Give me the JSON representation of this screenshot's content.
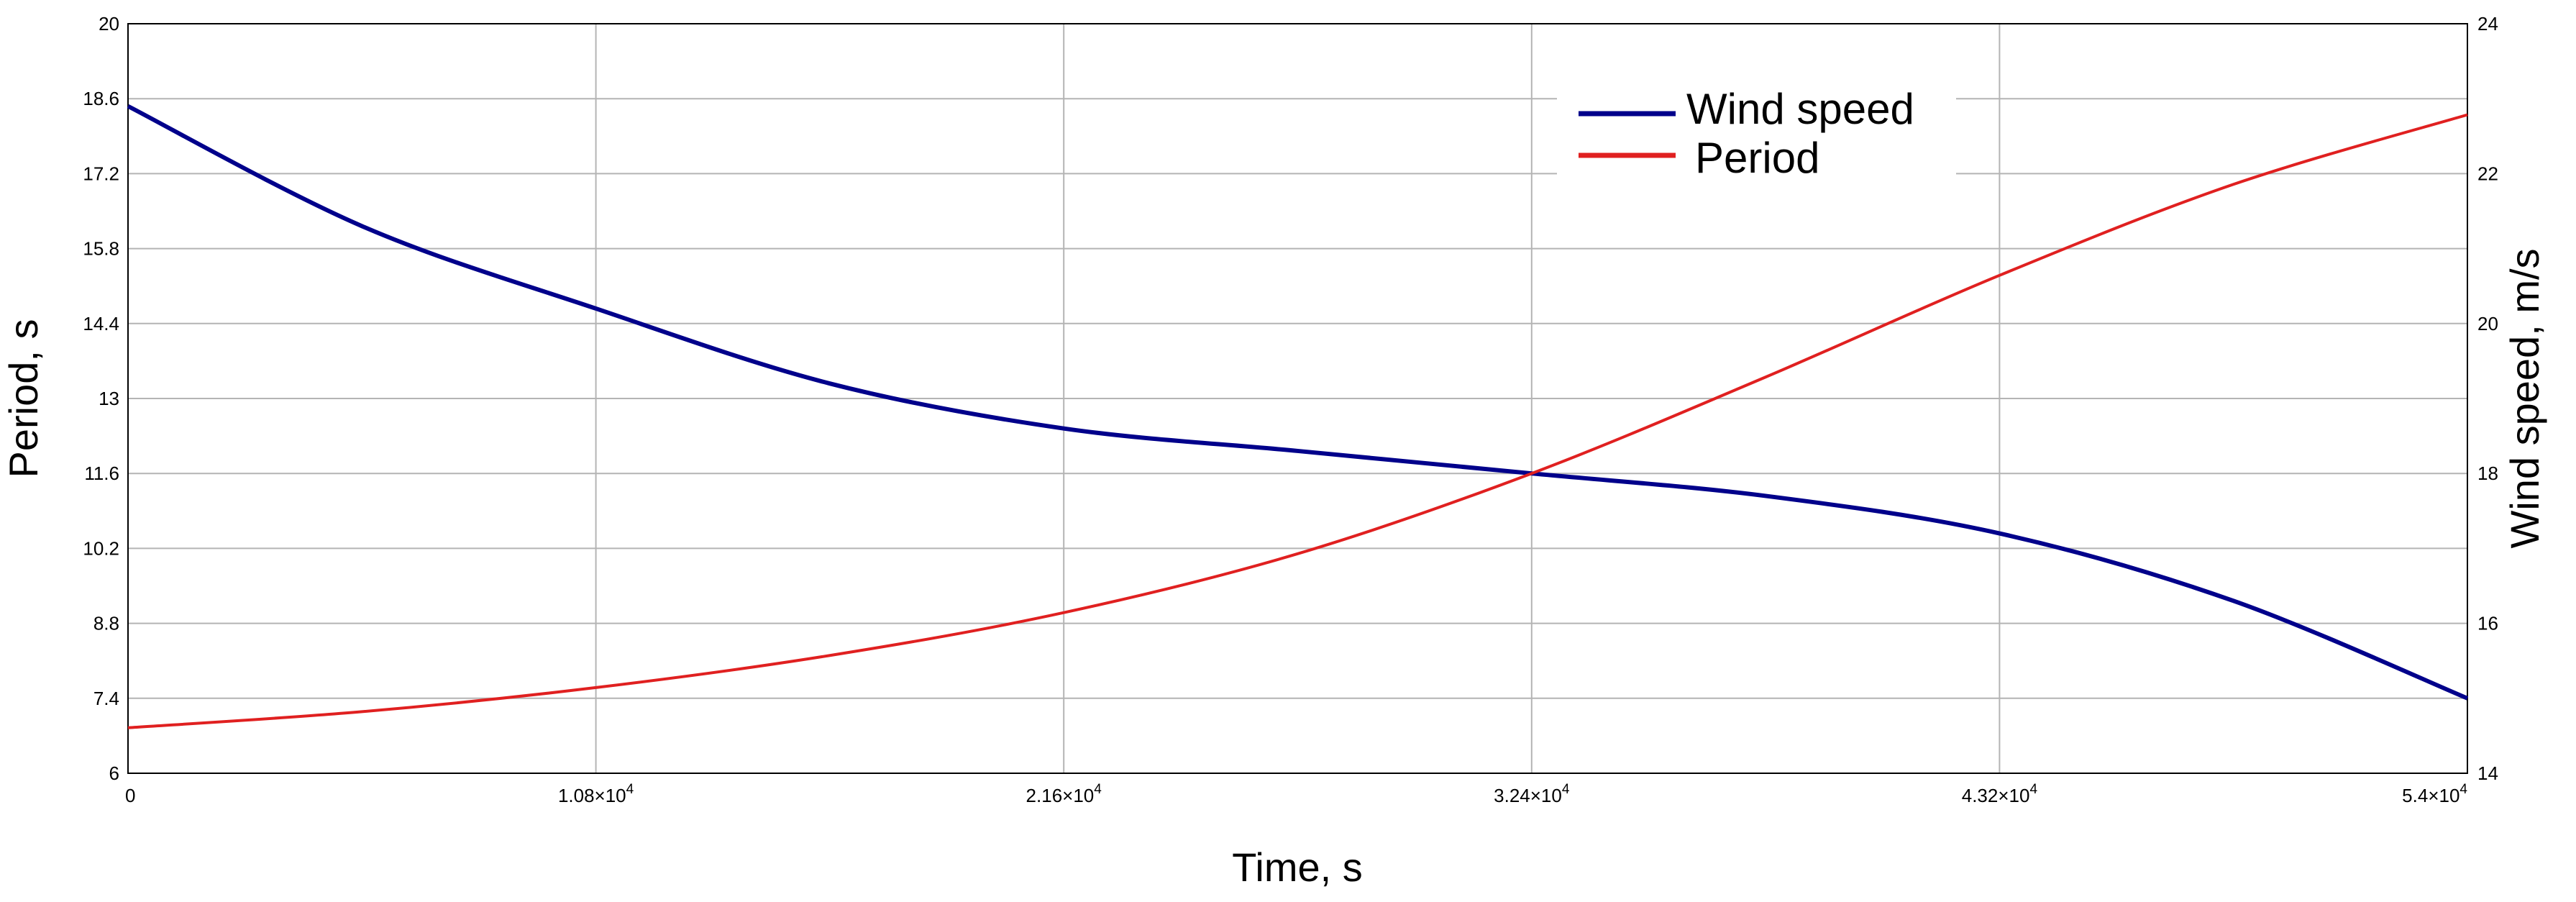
{
  "chart_data": {
    "type": "line",
    "title": "",
    "xlabel": "Time, s",
    "ylabel_left": "Period, s",
    "ylabel_right": "Wind speed, m/s",
    "xlim": [
      0,
      54000
    ],
    "ylim_left": [
      6,
      20
    ],
    "ylim_right": [
      14,
      24
    ],
    "x_ticks": [
      {
        "value": 0,
        "mantissa": "0",
        "exp": ""
      },
      {
        "value": 10800,
        "mantissa": "1.08×10",
        "exp": "4"
      },
      {
        "value": 21600,
        "mantissa": "2.16×10",
        "exp": "4"
      },
      {
        "value": 32400,
        "mantissa": "3.24×10",
        "exp": "4"
      },
      {
        "value": 43200,
        "mantissa": "4.32×10",
        "exp": "4"
      },
      {
        "value": 54000,
        "mantissa": "5.4×10",
        "exp": "4"
      }
    ],
    "y_ticks_left": [
      "6",
      "7.4",
      "8.8",
      "10.2",
      "11.6",
      "13",
      "14.4",
      "15.8",
      "17.2",
      "18.6",
      "20"
    ],
    "y_ticks_right": [
      "14",
      "16",
      "18",
      "20",
      "22",
      "24"
    ],
    "grid": true,
    "legend_position": "top-right",
    "x": [
      0,
      5400,
      10800,
      16200,
      21600,
      27000,
      32400,
      37800,
      43200,
      48600,
      54000
    ],
    "series": [
      {
        "name": "Wind speed",
        "axis": "right",
        "color": "#00008b",
        "values": [
          22.9,
          21.3,
          20.2,
          19.2,
          18.6,
          18.3,
          18.0,
          17.7,
          17.2,
          16.3,
          15.0
        ]
      },
      {
        "name": "Period",
        "axis": "left",
        "color": "#e02020",
        "values": [
          6.85,
          7.15,
          7.6,
          8.2,
          9.0,
          10.1,
          11.6,
          13.4,
          15.3,
          17.0,
          18.3
        ]
      }
    ]
  }
}
